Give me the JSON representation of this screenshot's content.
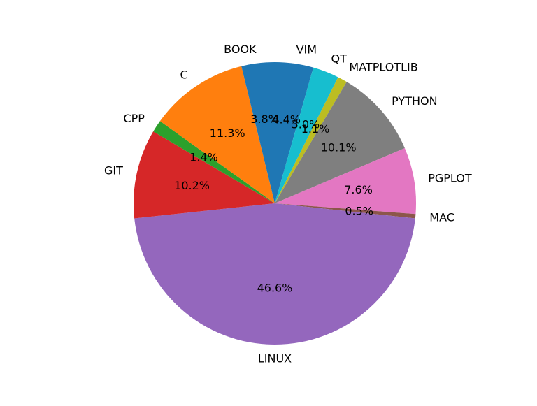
{
  "chart_data": {
    "type": "pie",
    "title": "",
    "start_angle_deg": 90,
    "direction": "clockwise",
    "slices": [
      {
        "label": "VIM",
        "percent": 4.4,
        "percent_label": "4.4%",
        "color": "#1f77b4"
      },
      {
        "label": "QT",
        "percent": 3.0,
        "percent_label": "3.0%",
        "color": "#17becf"
      },
      {
        "label": "MATPLOTLIB",
        "percent": 1.1,
        "percent_label": "1.1%",
        "color": "#bcbd22"
      },
      {
        "label": "PYTHON",
        "percent": 10.1,
        "percent_label": "10.1%",
        "color": "#7f7f7f"
      },
      {
        "label": "PGPLOT",
        "percent": 7.6,
        "percent_label": "7.6%",
        "color": "#e377c2"
      },
      {
        "label": "MAC",
        "percent": 0.5,
        "percent_label": "0.5%",
        "color": "#8c564b"
      },
      {
        "label": "LINUX",
        "percent": 46.6,
        "percent_label": "46.6%",
        "color": "#9467bd"
      },
      {
        "label": "GIT",
        "percent": 10.2,
        "percent_label": "10.2%",
        "color": "#d62728"
      },
      {
        "label": "CPP",
        "percent": 1.4,
        "percent_label": "1.4%",
        "color": "#2ca02c"
      },
      {
        "label": "C",
        "percent": 11.3,
        "percent_label": "11.3%",
        "color": "#ff7f0e"
      },
      {
        "label": "BOOK",
        "percent": 3.8,
        "percent_label": "3.8%",
        "color": "#1f77b4"
      }
    ]
  }
}
